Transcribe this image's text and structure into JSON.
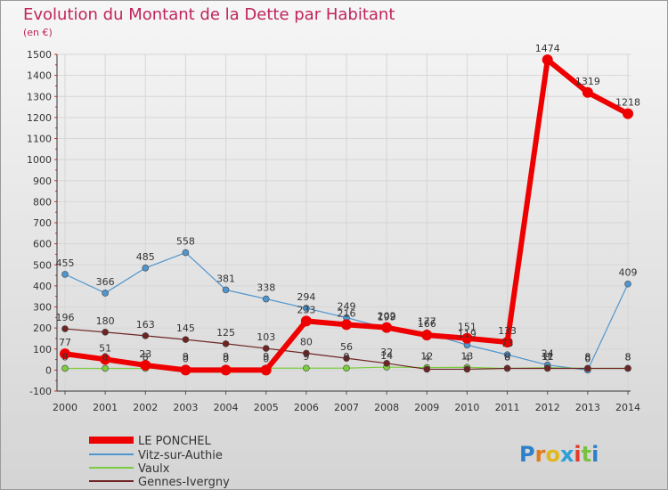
{
  "colors": {
    "le_ponchel": "#ee0000",
    "vitz": "#4f96cf",
    "vaulx": "#7ccc3f",
    "gennes": "#6e2424",
    "title": "#c0245c",
    "axis_ticks": "#d82a2a",
    "grid": "#d6d6d6"
  },
  "chart_data": {
    "type": "line",
    "title": "Evolution du Montant de la Dette par Habitant",
    "subtitle": "(en €)",
    "xlabel": "",
    "ylabel": "",
    "x": [
      "2000",
      "2001",
      "2002",
      "2003",
      "2004",
      "2005",
      "2006",
      "2007",
      "2008",
      "2009",
      "2010",
      "2011",
      "2012",
      "2013",
      "2014"
    ],
    "ylim": [
      -100,
      1500
    ],
    "yticks": [
      -100,
      0,
      100,
      200,
      300,
      400,
      500,
      600,
      700,
      800,
      900,
      1000,
      1100,
      1200,
      1300,
      1400,
      1500
    ],
    "grid": true,
    "legend_position": "bottom-left",
    "series": [
      {
        "name": "LE PONCHEL",
        "values": [
          77,
          51,
          23,
          0,
          0,
          0,
          233,
          216,
          202,
          166,
          151,
          133,
          1474,
          1319,
          1218
        ],
        "labels": [
          "77",
          "51",
          "23",
          "0",
          "0",
          "0",
          "233",
          "216",
          "202",
          "166",
          "151",
          "133",
          "1474",
          "1319",
          "1218"
        ]
      },
      {
        "name": "Vitz-sur-Authie",
        "values": [
          455,
          366,
          485,
          558,
          381,
          338,
          294,
          249,
          199,
          177,
          119,
          73,
          24,
          0,
          409
        ],
        "labels": [
          "455",
          "366",
          "485",
          "558",
          "381",
          "338",
          "294",
          "249",
          "199",
          "177",
          "119",
          "73",
          "24",
          "0",
          "409"
        ]
      },
      {
        "name": "Vaulx",
        "values": [
          8,
          8,
          8,
          9,
          9,
          9,
          9,
          9,
          14,
          12,
          13,
          8,
          11,
          8,
          8
        ],
        "labels": [
          "8",
          "8",
          "8",
          "9",
          "9",
          "9",
          "9",
          "9",
          "14",
          "12",
          "13",
          "8",
          "11",
          "8",
          "8"
        ]
      },
      {
        "name": "Gennes-Ivergny",
        "values": [
          196,
          180,
          163,
          145,
          125,
          103,
          80,
          56,
          32,
          4,
          4,
          8,
          8,
          8,
          8
        ],
        "labels": [
          "196",
          "180",
          "163",
          "145",
          "125",
          "103",
          "80",
          "56",
          "32",
          "4",
          "4",
          "8",
          "8",
          "8",
          "8"
        ]
      }
    ]
  },
  "logo": {
    "text": "Proxiti"
  }
}
